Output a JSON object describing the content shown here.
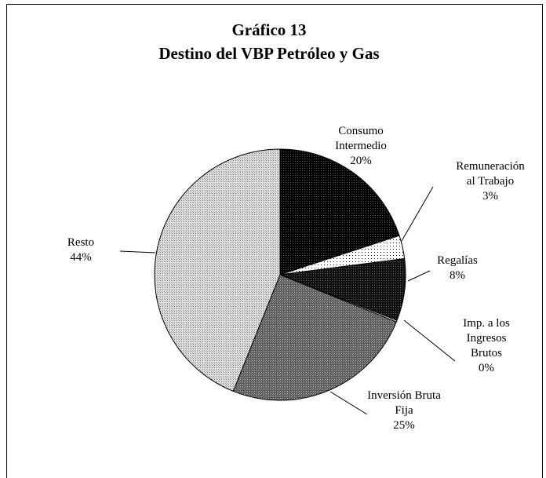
{
  "chart_data": {
    "type": "pie",
    "title": "Gráfico 13",
    "subtitle": "Destino del VBP Petróleo y Gas",
    "slices": [
      {
        "label_lines": [
          "Consumo",
          "Intermedio"
        ],
        "percent_label": "20%",
        "value": 20,
        "fill": "#000000",
        "pattern": "black"
      },
      {
        "label_lines": [
          "Remuneración",
          "al Trabajo"
        ],
        "percent_label": "3%",
        "value": 3,
        "fill": "#ffffff",
        "pattern": "dots-light"
      },
      {
        "label_lines": [
          "Regalías"
        ],
        "percent_label": "8%",
        "value": 8,
        "fill": "#1c1c1c",
        "pattern": "dense-dark"
      },
      {
        "label_lines": [
          "Imp. a los",
          "Ingresos",
          "Brutos"
        ],
        "percent_label": "0%",
        "value": 0.2,
        "fill": "#ffffff",
        "pattern": "none"
      },
      {
        "label_lines": [
          "Inversión Bruta",
          "Fija"
        ],
        "percent_label": "25%",
        "value": 25,
        "fill": "#7a7a7a",
        "pattern": "medium-gray"
      },
      {
        "label_lines": [
          "Resto"
        ],
        "percent_label": "44%",
        "value": 44,
        "fill": "#bdbdbd",
        "pattern": "light-gray"
      }
    ]
  }
}
